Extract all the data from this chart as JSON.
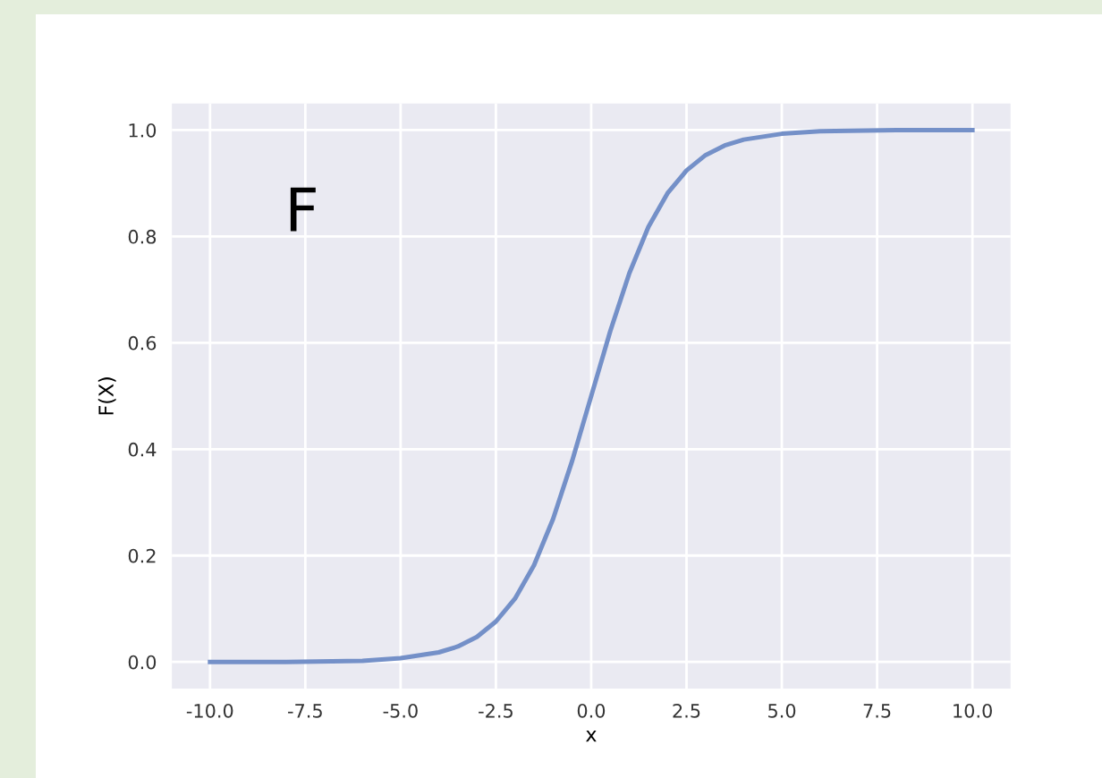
{
  "chart_data": {
    "type": "line",
    "xlabel": "x",
    "ylabel": "F(X)",
    "x": [
      -10,
      -8,
      -6,
      -5,
      -4,
      -3.5,
      -3,
      -2.5,
      -2,
      -1.5,
      -1,
      -0.5,
      0,
      0.5,
      1,
      1.5,
      2,
      2.5,
      3,
      3.5,
      4,
      5,
      6,
      8,
      10
    ],
    "series": [
      {
        "color": "#7490c8",
        "values": [
          0.0,
          0.0,
          0.002,
          0.007,
          0.018,
          0.029,
          0.047,
          0.076,
          0.119,
          0.182,
          0.269,
          0.378,
          0.5,
          0.622,
          0.731,
          0.818,
          0.881,
          0.924,
          0.953,
          0.971,
          0.982,
          0.993,
          0.998,
          1.0,
          1.0
        ]
      }
    ],
    "xlim": [
      -11,
      11
    ],
    "ylim": [
      -0.05,
      1.05
    ],
    "xticks": [
      {
        "value": -10,
        "label": "-10.0"
      },
      -7.5,
      {
        "value": -5,
        "label": "-5.0"
      },
      -2.5,
      {
        "value": 0,
        "label": "0.0"
      },
      2.5,
      {
        "value": 5,
        "label": "5.0"
      },
      7.5,
      {
        "value": 10,
        "label": "10.0"
      }
    ],
    "yticks": [
      {
        "value": 0,
        "label": "0.0"
      },
      0.2,
      0.4,
      0.6,
      0.8,
      {
        "value": 1,
        "label": "1.0"
      }
    ],
    "grid": true,
    "marker": "none",
    "line_style": "solid",
    "annotations": [
      "F"
    ]
  }
}
